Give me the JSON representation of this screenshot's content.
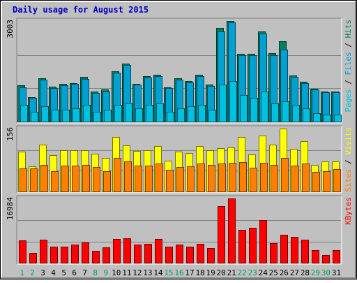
{
  "colors": {
    "frame_bg": "#C0C0C0",
    "plot_bg": "#C0C0C0",
    "title": "#0000C0",
    "pages": "#00C0E0",
    "files": "#00A0D0",
    "hits": "#008060",
    "sites": "#FF8000",
    "visits": "#FFFF00",
    "kbytes": "#FF0000",
    "weekday_label": "#000000",
    "weekend_label": "#00A060"
  },
  "chart_data": {
    "type": "bar",
    "title": "Daily usage for August 2015",
    "categories": [
      "1",
      "2",
      "3",
      "4",
      "5",
      "6",
      "7",
      "8",
      "9",
      "10",
      "11",
      "12",
      "13",
      "14",
      "15",
      "16",
      "17",
      "18",
      "19",
      "20",
      "21",
      "22",
      "23",
      "24",
      "25",
      "26",
      "27",
      "28",
      "29",
      "30",
      "31"
    ],
    "weekend_days": [
      "1",
      "2",
      "8",
      "9",
      "15",
      "16",
      "22",
      "23",
      "29",
      "30"
    ],
    "panels": [
      {
        "name": "hits-files-pages",
        "ymax_label": "3003",
        "ylim": [
          0,
          3003
        ],
        "legend": [
          {
            "text": "Pages",
            "color_key": "pages"
          },
          {
            "text": " / ",
            "color_key": "weekday_label"
          },
          {
            "text": "Files",
            "color_key": "files"
          },
          {
            "text": " / ",
            "color_key": "weekday_label"
          },
          {
            "text": "Hits",
            "color_key": "hits"
          }
        ],
        "series": [
          {
            "color_key": "hits",
            "values": [
              1080,
              730,
              1300,
              1050,
              1130,
              1150,
              1330,
              890,
              950,
              1500,
              1740,
              1130,
              1360,
              1400,
              1030,
              1290,
              1200,
              1400,
              1100,
              2800,
              3003,
              2020,
              2030,
              2680,
              2050,
              2400,
              1380,
              1190,
              980,
              900,
              900
            ]
          },
          {
            "color_key": "files",
            "values": [
              1030,
              700,
              1250,
              1010,
              1090,
              1120,
              1280,
              860,
              900,
              1450,
              1680,
              1100,
              1320,
              1350,
              1000,
              1250,
              1160,
              1360,
              1060,
              2700,
              2960,
              1980,
              1990,
              2620,
              1990,
              2150,
              1340,
              1150,
              950,
              870,
              880
            ]
          },
          {
            "color_key": "pages",
            "values": [
              500,
              300,
              450,
              350,
              350,
              400,
              500,
              300,
              350,
              500,
              550,
              400,
              500,
              550,
              300,
              400,
              450,
              500,
              350,
              1100,
              1200,
              800,
              700,
              900,
              550,
              600,
              500,
              400,
              250,
              200,
              200
            ]
          }
        ]
      },
      {
        "name": "visits-sites",
        "ymax_label": "156",
        "ylim": [
          0,
          156
        ],
        "legend": [
          {
            "text": "Sites",
            "color_key": "sites"
          },
          {
            "text": " / ",
            "color_key": "weekday_label"
          },
          {
            "text": "Visits",
            "color_key": "visits"
          }
        ],
        "series": [
          {
            "color_key": "visits",
            "values": [
              98,
              63,
              116,
              90,
              102,
              102,
              103,
              94,
              83,
              135,
              114,
              101,
              103,
              112,
              76,
              99,
              96,
              113,
              103,
              108,
              110,
              136,
              92,
              139,
              116,
              156,
              106,
              124,
              66,
              75,
              75
            ]
          },
          {
            "color_key": "sites",
            "values": [
              58,
              57,
              66,
              50,
              64,
              64,
              66,
              60,
              51,
              84,
              74,
              64,
              64,
              70,
              54,
              61,
              62,
              69,
              65,
              70,
              71,
              73,
              59,
              71,
              65,
              84,
              64,
              70,
              48,
              50,
              55
            ]
          }
        ]
      },
      {
        "name": "kbytes",
        "ymax_label": "16984",
        "ylim": [
          0,
          16984
        ],
        "legend": [
          {
            "text": "KBytes",
            "color_key": "kbytes"
          }
        ],
        "series": [
          {
            "color_key": "kbytes",
            "values": [
              5900,
              2500,
              6000,
              4300,
              4200,
              4800,
              5400,
              3100,
              4100,
              6200,
              6500,
              4800,
              4900,
              6200,
              4300,
              4800,
              4300,
              5000,
              3900,
              15000,
              16984,
              8700,
              9300,
              11300,
              5200,
              7300,
              6900,
              6000,
              3300,
              2000,
              3400
            ]
          }
        ]
      }
    ]
  }
}
